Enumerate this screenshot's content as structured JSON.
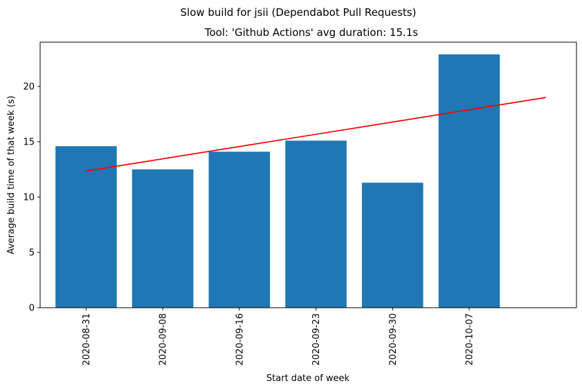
{
  "figure": {
    "suptitle": "Slow build for jsii (Dependabot Pull Requests)"
  },
  "chart_data": {
    "type": "bar",
    "title": "Tool: 'Github Actions' avg duration: 15.1s",
    "xlabel": "Start date of week",
    "ylabel": "Average build time of that week (s)",
    "categories": [
      "2020-08-31",
      "2020-09-08",
      "2020-09-16",
      "2020-09-23",
      "2020-09-30",
      "2020-10-07"
    ],
    "values": [
      14.6,
      12.5,
      14.1,
      15.1,
      11.3,
      22.9
    ],
    "bar_color": "#1f77b4",
    "ylim": [
      0,
      24.0
    ],
    "xlim": [
      -0.6,
      6.4
    ],
    "yticks": [
      0,
      5,
      10,
      15,
      20
    ],
    "trend_line": {
      "color": "#ff0000",
      "x": [
        0,
        6
      ],
      "y": [
        12.35,
        19.0
      ]
    },
    "grid": false,
    "legend": "none"
  }
}
